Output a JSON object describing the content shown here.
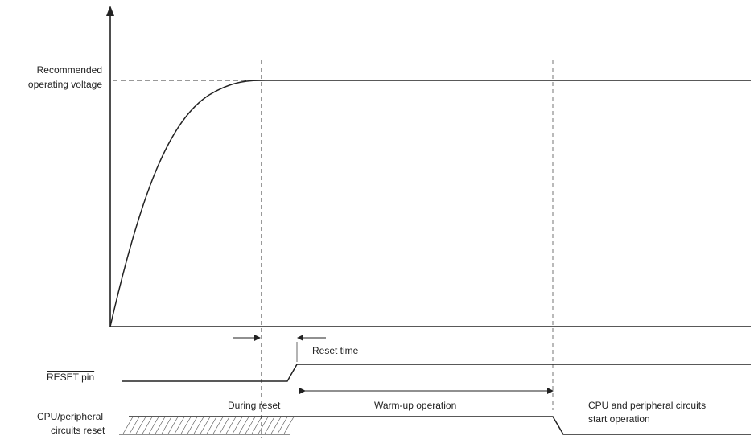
{
  "labels": {
    "voltage_line1": "Recommended",
    "voltage_line2": "operating voltage",
    "reset_time": "Reset time",
    "reset_pin": "RESET pin",
    "during_reset": "During reset",
    "warmup": "Warm-up operation",
    "cpu_start_line1": "CPU and peripheral circuits",
    "cpu_start_line2": "start operation",
    "cpu_reset_line1": "CPU/peripheral",
    "cpu_reset_line2": "circuits reset"
  }
}
